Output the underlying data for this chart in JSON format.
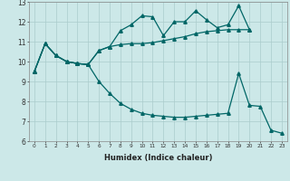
{
  "xlabel": "Humidex (Indice chaleur)",
  "bg_color": "#cce8e8",
  "grid_color": "#aacccc",
  "line_color": "#006666",
  "xlim": [
    -0.5,
    23.5
  ],
  "ylim": [
    6,
    13
  ],
  "xticks": [
    0,
    1,
    2,
    3,
    4,
    5,
    6,
    7,
    8,
    9,
    10,
    11,
    12,
    13,
    14,
    15,
    16,
    17,
    18,
    19,
    20,
    21,
    22,
    23
  ],
  "yticks": [
    6,
    7,
    8,
    9,
    10,
    11,
    12,
    13
  ],
  "line1_x": [
    0,
    1,
    2,
    3,
    4,
    5,
    6,
    7,
    8,
    9,
    10,
    11,
    12,
    13,
    14,
    15,
    16,
    17,
    18,
    19,
    20
  ],
  "line1_y": [
    9.5,
    10.9,
    10.3,
    10.0,
    9.9,
    9.85,
    10.55,
    10.75,
    10.85,
    10.9,
    10.9,
    10.95,
    11.05,
    11.15,
    11.25,
    11.4,
    11.5,
    11.55,
    11.6,
    11.6,
    11.6
  ],
  "line2_x": [
    0,
    1,
    2,
    3,
    4,
    5,
    6,
    7,
    8,
    9,
    10,
    11,
    12,
    13,
    14,
    15,
    16,
    17,
    18,
    19,
    20
  ],
  "line2_y": [
    9.5,
    10.9,
    10.3,
    10.0,
    9.9,
    9.85,
    10.55,
    10.75,
    11.55,
    11.85,
    12.3,
    12.25,
    11.3,
    12.0,
    12.0,
    12.55,
    12.1,
    11.7,
    11.85,
    12.8,
    11.6
  ],
  "line3_x": [
    0,
    1,
    2,
    3,
    4,
    5,
    6,
    7,
    8,
    9,
    10,
    11,
    12,
    13,
    14,
    15,
    16,
    17,
    18,
    19,
    20,
    21,
    22,
    23
  ],
  "line3_y": [
    9.5,
    10.9,
    10.3,
    10.0,
    9.9,
    9.85,
    9.0,
    8.4,
    7.9,
    7.6,
    7.4,
    7.3,
    7.25,
    7.2,
    7.2,
    7.25,
    7.3,
    7.35,
    7.4,
    9.4,
    7.8,
    7.75,
    6.55,
    6.4
  ]
}
